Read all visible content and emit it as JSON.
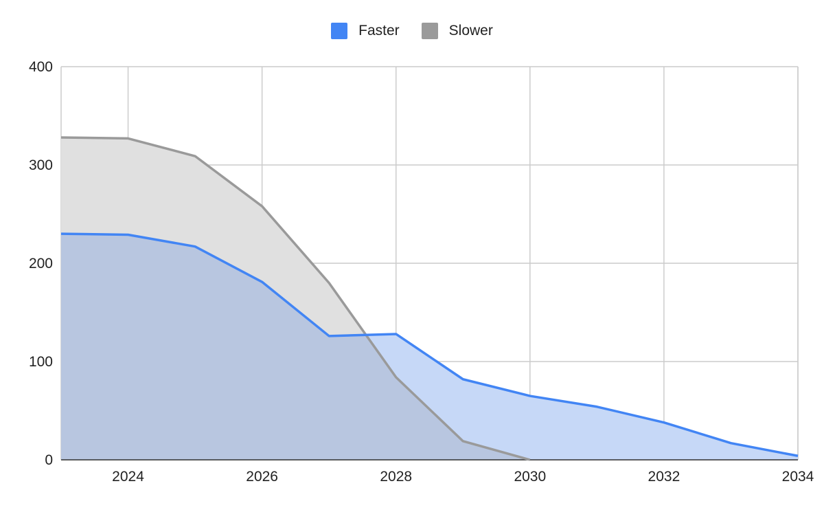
{
  "chart_data": {
    "type": "area",
    "x": [
      2023,
      2024,
      2025,
      2026,
      2027,
      2028,
      2029,
      2030,
      2031,
      2032,
      2033,
      2034
    ],
    "series": [
      {
        "name": "Faster",
        "color": "#4285f4",
        "fill": "#c6d8f7",
        "values": [
          230,
          229,
          217,
          181,
          126,
          128,
          82,
          65,
          54,
          38,
          17,
          4
        ]
      },
      {
        "name": "Slower",
        "color": "#9a9a9a",
        "fill": "#e0e0e0",
        "values": [
          328,
          327,
          309,
          258,
          180,
          84,
          19,
          0,
          null,
          null,
          null,
          null
        ]
      }
    ],
    "overlap_fill": "#b8c6e0",
    "x_ticks": [
      "2024",
      "2026",
      "2028",
      "2030",
      "2032",
      "2034"
    ],
    "y_ticks": [
      "0",
      "100",
      "200",
      "300",
      "400"
    ],
    "xlim": [
      2023,
      2034
    ],
    "ylim": [
      0,
      400
    ],
    "grid": true,
    "legend_position": "top-center",
    "title": "",
    "xlabel": "",
    "ylabel": ""
  }
}
